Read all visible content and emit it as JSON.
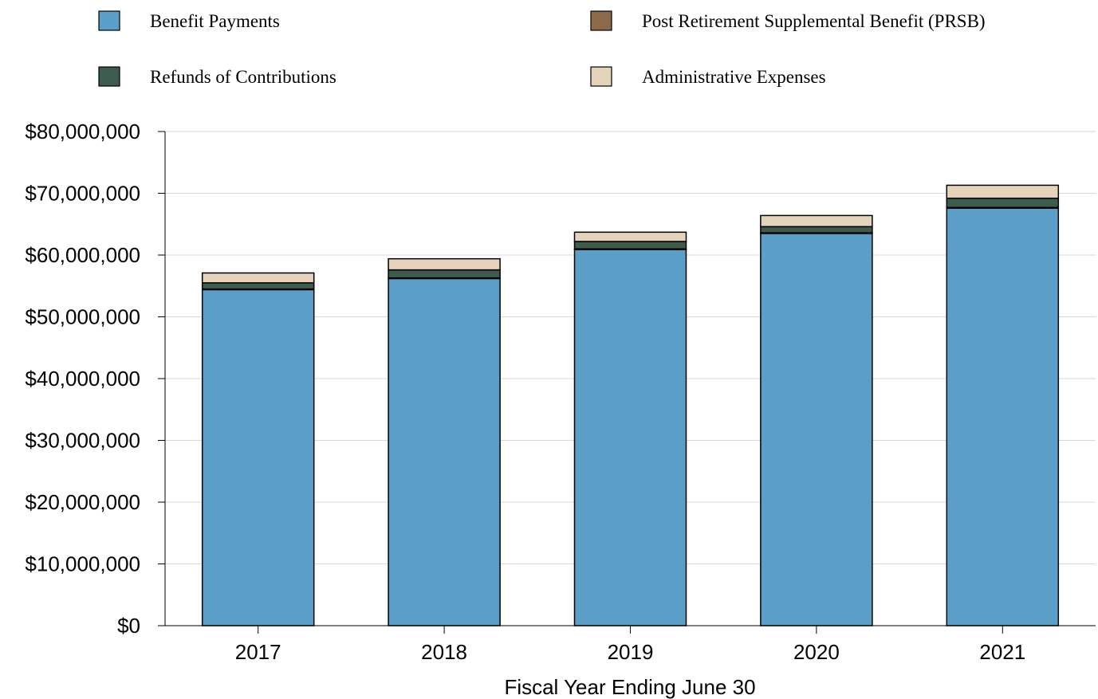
{
  "chart_data": {
    "type": "bar",
    "stacked": true,
    "title": "",
    "xlabel": "Fiscal Year Ending June 30",
    "ylabel": "",
    "categories": [
      "2017",
      "2018",
      "2019",
      "2020",
      "2021"
    ],
    "ylim": [
      0,
      80000000
    ],
    "yticks": [
      0,
      10000000,
      20000000,
      30000000,
      40000000,
      50000000,
      60000000,
      70000000,
      80000000
    ],
    "ytick_labels": [
      "$0",
      "$10,000,000",
      "$20,000,000",
      "$30,000,000",
      "$40,000,000",
      "$50,000,000",
      "$60,000,000",
      "$70,000,000",
      "$80,000,000"
    ],
    "grid": true,
    "legend_position": "top",
    "series": [
      {
        "name": "Benefit Payments",
        "color": "#5B9EC7",
        "values": [
          54400000,
          56200000,
          60900000,
          63500000,
          67600000
        ]
      },
      {
        "name": "Post Retirement Supplemental Benefit (PRSB)",
        "color": "#8B6B4A",
        "values": [
          100000,
          100000,
          100000,
          100000,
          100000
        ]
      },
      {
        "name": "Refunds of Contributions",
        "color": "#3D5C4E",
        "values": [
          1000000,
          1300000,
          1200000,
          1000000,
          1500000
        ]
      },
      {
        "name": "Administrative Expenses",
        "color": "#E6D3BC",
        "values": [
          1600000,
          1800000,
          1500000,
          1800000,
          2100000
        ]
      }
    ]
  }
}
